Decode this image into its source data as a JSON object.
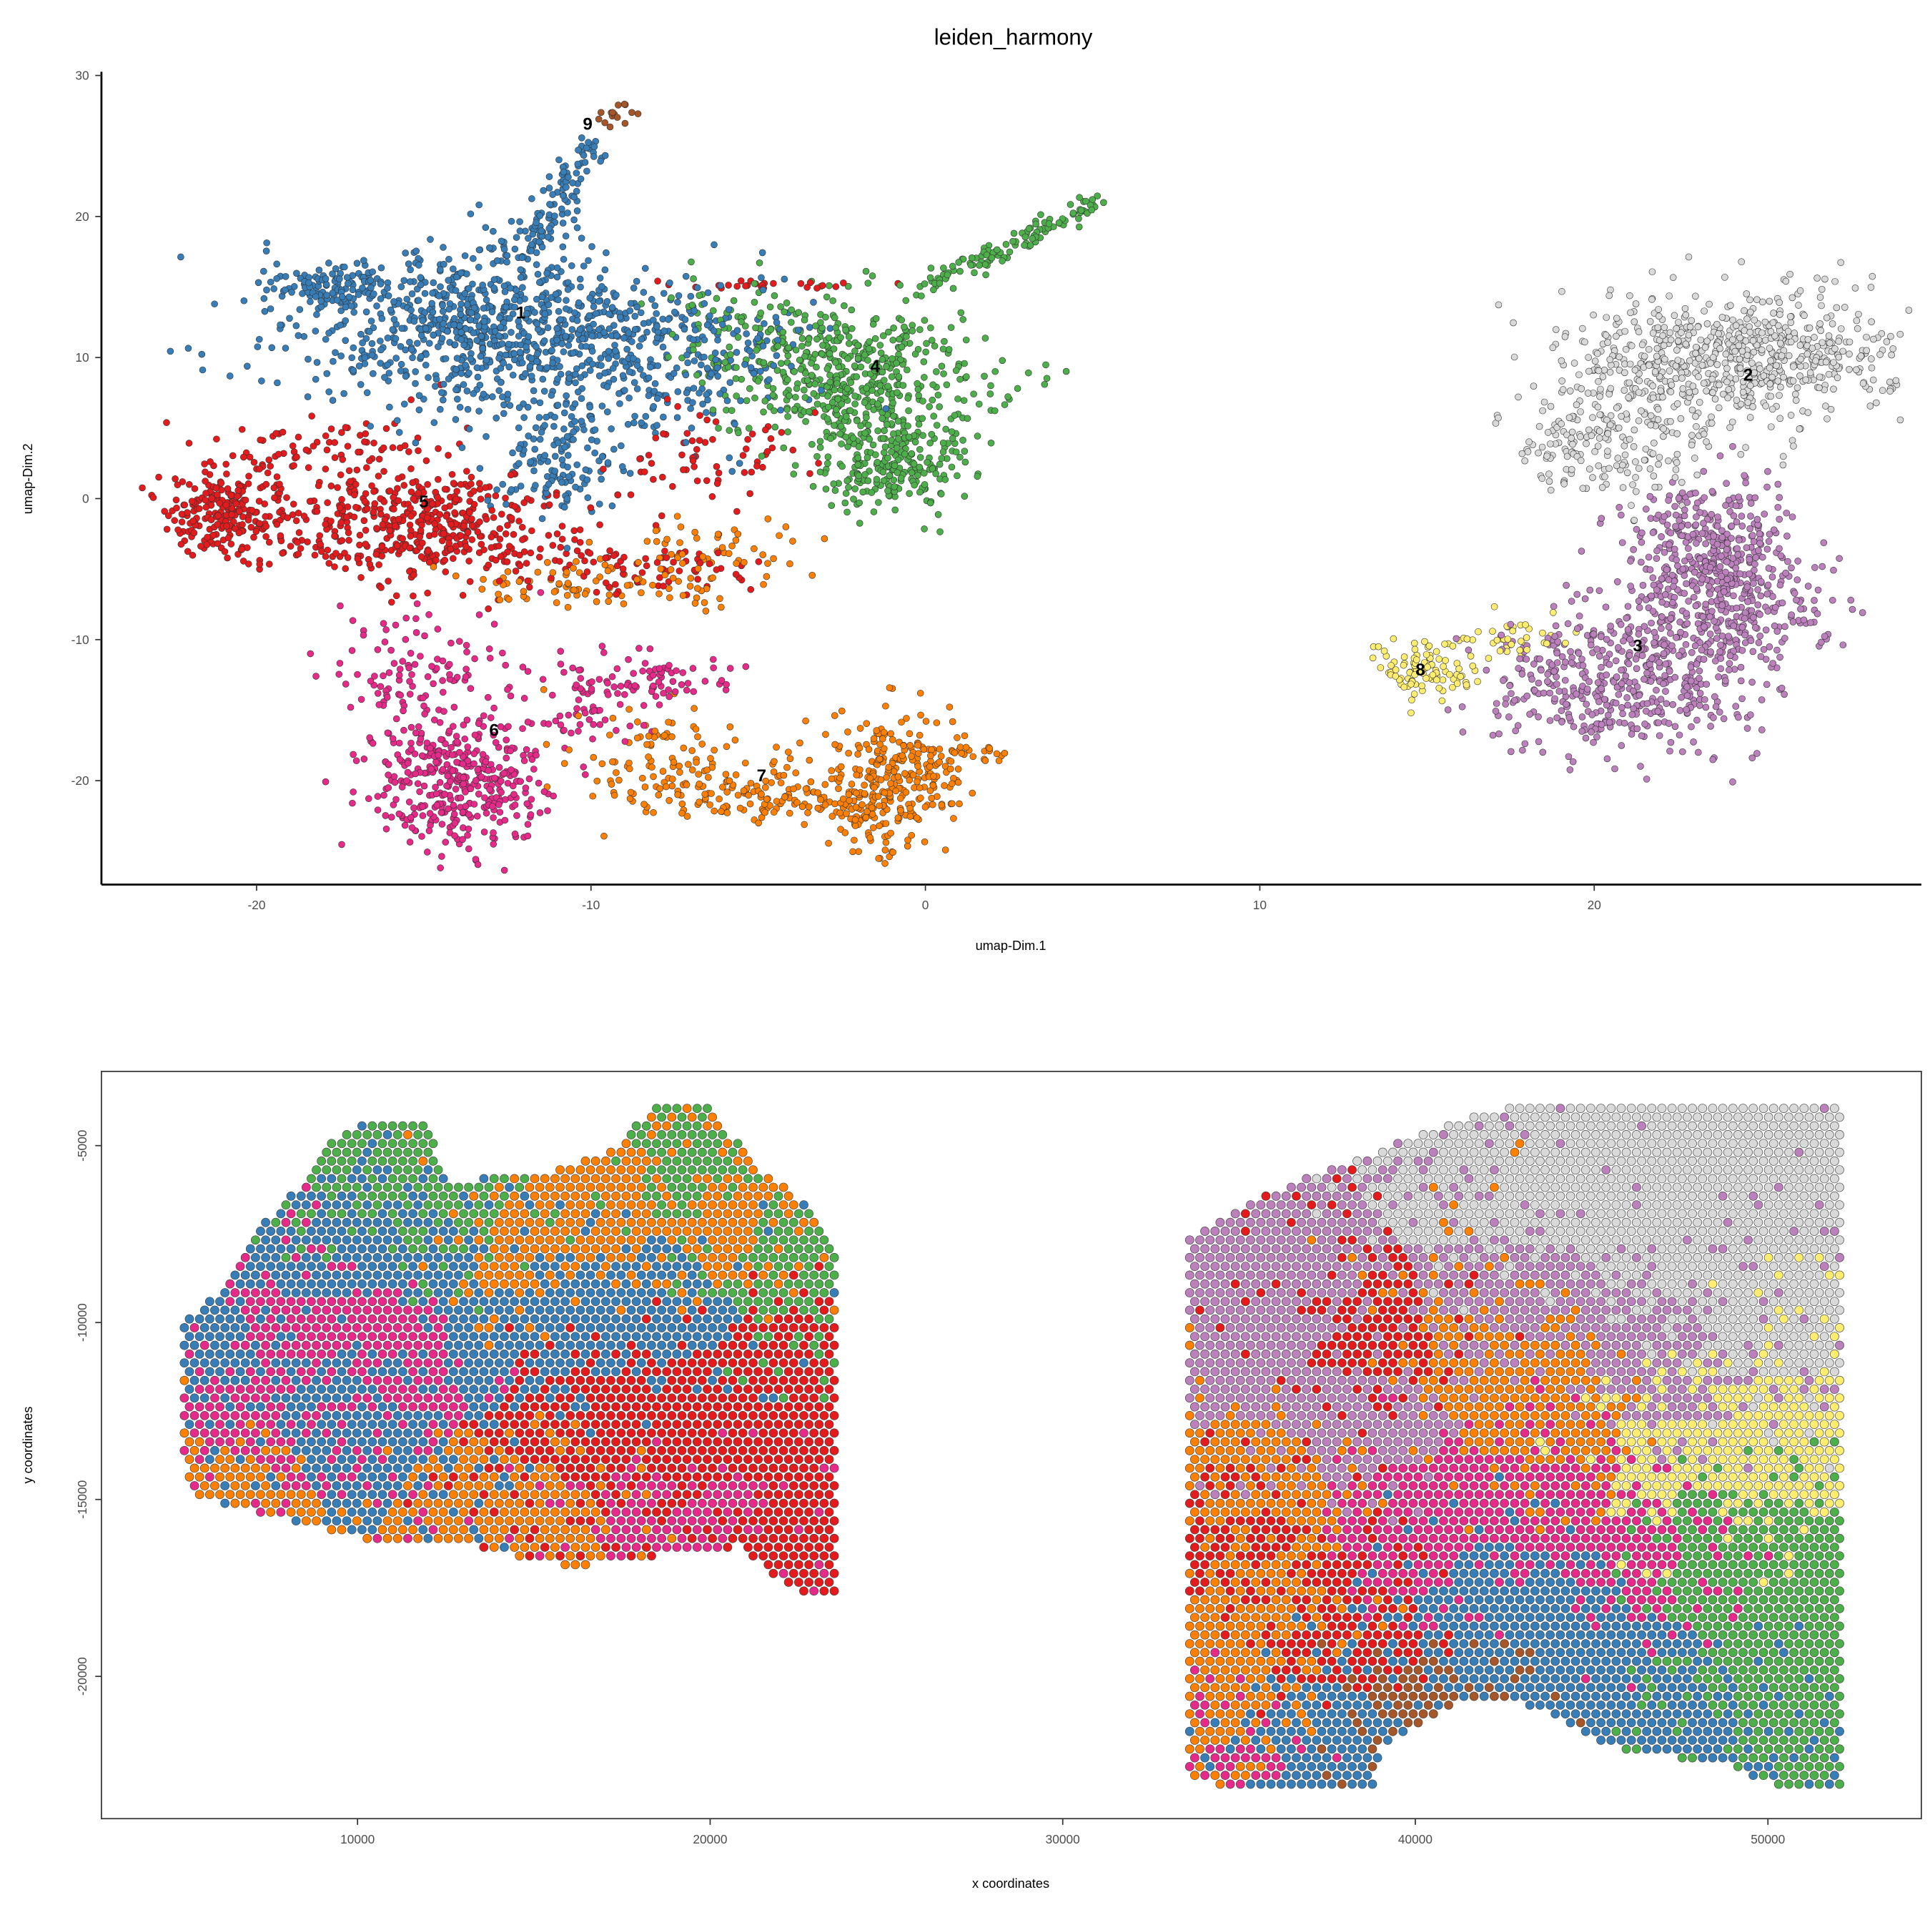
{
  "chart_data": [
    {
      "type": "scatter",
      "title": "leiden_harmony",
      "xlabel": "umap-Dim.1",
      "ylabel": "umap-Dim.2",
      "xlim": [
        -24.7,
        29.8
      ],
      "ylim": [
        -27.5,
        30.3
      ],
      "xticks": [
        -20,
        -10,
        0,
        10,
        20
      ],
      "yticks": [
        -20,
        -10,
        0,
        10,
        20,
        30
      ],
      "grid": false,
      "legend": "none",
      "cluster_colors": {
        "1": "#377EB8",
        "2": "#D9D9D9",
        "3": "#BC80BD",
        "4": "#4DAF4A",
        "5": "#E41A1C",
        "6": "#E7298A",
        "7": "#FF7F00",
        "8": "#FFED6F",
        "9": "#A65628"
      },
      "clusters": [
        {
          "id": "1",
          "label_pos": [
            -12.1,
            13.2
          ],
          "blobs": [
            [
              -13,
              12,
              3,
              3,
              900
            ],
            [
              -18,
              15,
              1,
              0.8,
              100
            ],
            [
              -11,
              3,
              1,
              2.5,
              150
            ],
            [
              -7,
              10,
              2,
              2.5,
              200
            ]
          ],
          "lines": [
            [
              -12,
              17,
              -10,
              25,
              100
            ]
          ]
        },
        {
          "id": "2",
          "label_pos": [
            24.6,
            8.8
          ],
          "blobs": [
            [
              24,
              10,
              2.5,
              2.3,
              700
            ],
            [
              20.5,
              4,
              1.5,
              2,
              200
            ]
          ],
          "lines": []
        },
        {
          "id": "3",
          "label_pos": [
            21.3,
            -10.4
          ],
          "blobs": [
            [
              23.5,
              -4,
              1.3,
              2.5,
              400
            ],
            [
              21,
              -13,
              2,
              2.5,
              500
            ],
            [
              24,
              -8,
              1.5,
              2,
              200
            ]
          ],
          "lines": []
        },
        {
          "id": "4",
          "label_pos": [
            -1.5,
            9.4
          ],
          "blobs": [
            [
              -2,
              8,
              2,
              2.5,
              500
            ],
            [
              -1,
              2,
              1,
              1.8,
              200
            ],
            [
              -5,
              12,
              1.5,
              2,
              100
            ]
          ],
          "lines": [
            [
              0,
              15,
              5,
              21,
              120
            ]
          ]
        },
        {
          "id": "5",
          "label_pos": [
            -15,
            -0.2
          ],
          "blobs": [
            [
              -15,
              -2,
              2.5,
              2,
              500
            ],
            [
              -21,
              -1,
              0.8,
              1.5,
              200
            ],
            [
              -18,
              3,
              2,
              1.5,
              100
            ],
            [
              -8,
              -5,
              1.5,
              1,
              60
            ],
            [
              -6,
              3,
              1.5,
              2,
              60
            ],
            [
              -5,
              15,
              1.5,
              0.3,
              25
            ]
          ],
          "lines": []
        },
        {
          "id": "6",
          "label_pos": [
            -12.9,
            -16.4
          ],
          "blobs": [
            [
              -14,
              -20,
              1.3,
              2.5,
              400
            ],
            [
              -15,
              -12,
              1.5,
              2,
              100
            ],
            [
              -8,
              -13,
              1,
              0.8,
              60
            ],
            [
              -10,
              -14,
              1,
              2,
              60
            ]
          ],
          "lines": []
        },
        {
          "id": "7",
          "label_pos": [
            -4.9,
            -19.6
          ],
          "blobs": [
            [
              -10,
              -6,
              2,
              0.8,
              80
            ],
            [
              -6,
              -4,
              1.5,
              1.5,
              60
            ],
            [
              -1,
              -20,
              1,
              2.5,
              300
            ],
            [
              -5,
              -21,
              2,
              1,
              150
            ],
            [
              -8,
              -18,
              1.5,
              1.5,
              80
            ],
            [
              1,
              -18,
              1,
              0.3,
              30
            ]
          ],
          "lines": []
        },
        {
          "id": "8",
          "label_pos": [
            14.8,
            -12.1
          ],
          "blobs": [
            [
              15,
              -12,
              0.8,
              1,
              100
            ],
            [
              17.5,
              -10,
              1,
              0.7,
              40
            ]
          ],
          "lines": []
        },
        {
          "id": "9",
          "label_pos": [
            -10.1,
            26.6
          ],
          "blobs": [],
          "lines": [
            [
              -9.6,
              26.5,
              -8.9,
              27.6,
              15
            ]
          ]
        }
      ]
    },
    {
      "type": "scatter",
      "title": "",
      "xlabel": "x coordinates",
      "ylabel": "y coordinates",
      "xlim": [
        3000,
        53700
      ],
      "ylim": [
        -24100,
        -2900
      ],
      "xticks": [
        10000,
        20000,
        30000,
        40000,
        50000
      ],
      "yticks": [
        -5000,
        -10000,
        -15000,
        -20000
      ],
      "grid": false,
      "spot_spacing": [
        288,
        248
      ],
      "tissues": [
        [
          [
            5000,
            -10000
          ],
          [
            6200,
            -9000
          ],
          [
            6900,
            -7600
          ],
          [
            8300,
            -6200
          ],
          [
            9000,
            -5100
          ],
          [
            10000,
            -4400
          ],
          [
            12000,
            -4400
          ],
          [
            12500,
            -6000
          ],
          [
            15300,
            -5800
          ],
          [
            17400,
            -5100
          ],
          [
            18300,
            -3900
          ],
          [
            19900,
            -3900
          ],
          [
            21600,
            -5800
          ],
          [
            23000,
            -6900
          ],
          [
            23600,
            -7900
          ],
          [
            23600,
            -17900
          ],
          [
            22000,
            -17400
          ],
          [
            20900,
            -16300
          ],
          [
            17800,
            -16700
          ],
          [
            16000,
            -16900
          ],
          [
            13200,
            -16300
          ],
          [
            10400,
            -16200
          ],
          [
            7600,
            -15500
          ],
          [
            5500,
            -14900
          ],
          [
            5000,
            -13900
          ]
        ],
        [
          [
            33500,
            -7600
          ],
          [
            35000,
            -6700
          ],
          [
            36700,
            -6000
          ],
          [
            38500,
            -5300
          ],
          [
            40900,
            -4400
          ],
          [
            43000,
            -3800
          ],
          [
            52100,
            -3700
          ],
          [
            52100,
            -23300
          ],
          [
            49700,
            -23000
          ],
          [
            49000,
            -22500
          ],
          [
            45800,
            -22100
          ],
          [
            44100,
            -21200
          ],
          [
            43000,
            -20700
          ],
          [
            41300,
            -20700
          ],
          [
            40200,
            -21400
          ],
          [
            39000,
            -21900
          ],
          [
            38800,
            -23200
          ],
          [
            34600,
            -23200
          ],
          [
            33600,
            -22800
          ],
          [
            33500,
            -20500
          ]
        ]
      ],
      "region_seeds": [
        [
          "1",
          9600,
          -12100
        ],
        [
          "1",
          12100,
          -7600
        ],
        [
          "1",
          14900,
          -10400
        ],
        [
          "1",
          18100,
          -9700
        ],
        [
          "1",
          8600,
          -7900
        ],
        [
          "1",
          5800,
          -11100
        ],
        [
          "4",
          10400,
          -5500
        ],
        [
          "4",
          19500,
          -5100
        ],
        [
          "4",
          22300,
          -7900
        ],
        [
          "4",
          13200,
          -6700
        ],
        [
          "7",
          14600,
          -7600
        ],
        [
          "7",
          16700,
          -6200
        ],
        [
          "7",
          21000,
          -6900
        ],
        [
          "7",
          14600,
          -15600
        ],
        [
          "7",
          5800,
          -14200
        ],
        [
          "5",
          19500,
          -12800
        ],
        [
          "5",
          22300,
          -11800
        ],
        [
          "5",
          22700,
          -16300
        ],
        [
          "5",
          16300,
          -12800
        ],
        [
          "6",
          8300,
          -10400
        ],
        [
          "6",
          10400,
          -11100
        ],
        [
          "6",
          6500,
          -12800
        ],
        [
          "6",
          19500,
          -16000
        ],
        [
          "2",
          45500,
          -5500
        ],
        [
          "2",
          49000,
          -7600
        ],
        [
          "2",
          49700,
          -10400
        ],
        [
          "2",
          42000,
          -6200
        ],
        [
          "3",
          36700,
          -9000
        ],
        [
          "3",
          35000,
          -11100
        ],
        [
          "3",
          42000,
          -9300
        ],
        [
          "3",
          47400,
          -11400
        ],
        [
          "3",
          38500,
          -12500
        ],
        [
          "7",
          35000,
          -14600
        ],
        [
          "7",
          35600,
          -18100
        ],
        [
          "7",
          34500,
          -21600
        ],
        [
          "7",
          44100,
          -13200
        ],
        [
          "7",
          41300,
          -10400
        ],
        [
          "5",
          34600,
          -16000
        ],
        [
          "5",
          38900,
          -10400
        ],
        [
          "5",
          37700,
          -18800
        ],
        [
          "6",
          40200,
          -15600
        ],
        [
          "6",
          43700,
          -14900
        ],
        [
          "6",
          46500,
          -16300
        ],
        [
          "6",
          34600,
          -22300
        ],
        [
          "8",
          49700,
          -12800
        ],
        [
          "8",
          47400,
          -13900
        ],
        [
          "4",
          50000,
          -18100
        ],
        [
          "4",
          50700,
          -21600
        ],
        [
          "4",
          48300,
          -16300
        ],
        [
          "1",
          39200,
          -22300
        ],
        [
          "1",
          43700,
          -19500
        ],
        [
          "1",
          47400,
          -20900
        ],
        [
          "1",
          37100,
          -21600
        ],
        [
          "1",
          42300,
          -17700
        ],
        [
          "9",
          39900,
          -21800
        ]
      ]
    }
  ]
}
